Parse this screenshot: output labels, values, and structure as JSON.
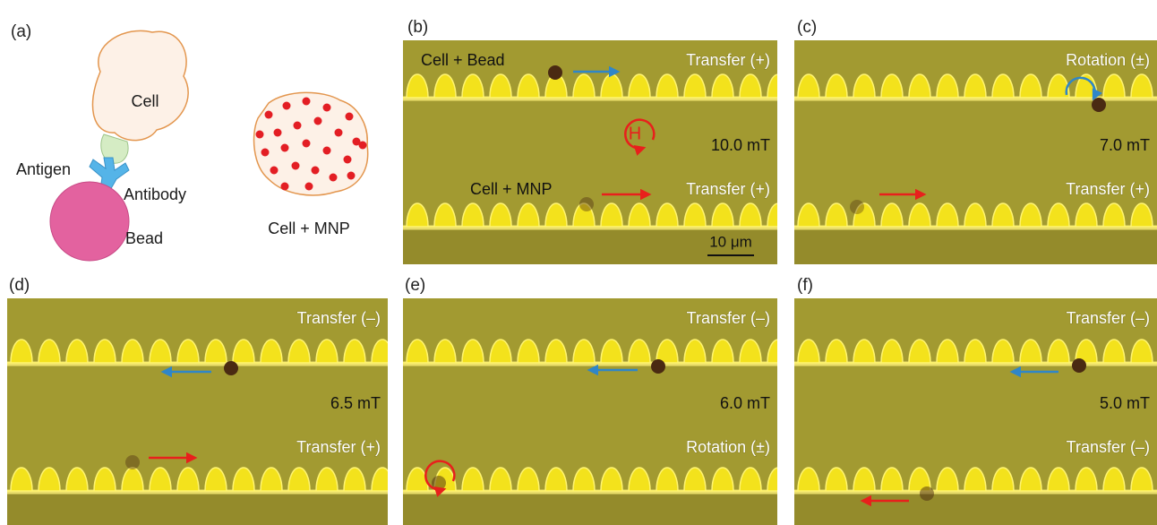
{
  "panel_a": {
    "label": "(a)",
    "cell": "Cell",
    "antigen": "Antigen",
    "antibody": "Antibody",
    "bead": "Bead",
    "cell_mnp": "Cell + MNP"
  },
  "panels": [
    {
      "label": "(b)",
      "top_mode": "Transfer (+)",
      "field": "10.0 mT",
      "bottom_mode": "Transfer (+)",
      "top_sample": "Cell + Bead",
      "bottom_sample": "Cell + MNP",
      "field_symbol": "H",
      "scale_bar": "10 μm"
    },
    {
      "label": "(c)",
      "top_mode": "Rotation (±)",
      "field": "7.0 mT",
      "bottom_mode": "Transfer (+)"
    },
    {
      "label": "(d)",
      "top_mode": "Transfer (–)",
      "field": "6.5 mT",
      "bottom_mode": "Transfer (+)"
    },
    {
      "label": "(e)",
      "top_mode": "Transfer (–)",
      "field": "6.0 mT",
      "bottom_mode": "Rotation (±)"
    },
    {
      "label": "(f)",
      "top_mode": "Transfer (–)",
      "field": "5.0 mT",
      "bottom_mode": "Transfer (–)"
    }
  ]
}
